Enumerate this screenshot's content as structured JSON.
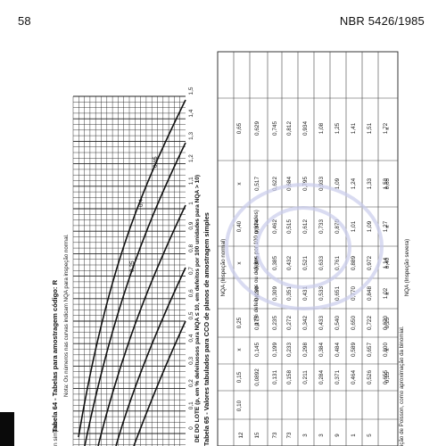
{
  "header": {
    "page_number": "58",
    "doc_id": "NBR 5426/1985"
  },
  "table64": {
    "title": "Tabela 64 - Tabelas para amostragem código: R",
    "note": "Nota: Os números nas curvas indicam NQA para inspeção normal.",
    "simples_label": "n simples",
    "curve_labels": [
      "0,65",
      "0,4",
      "0,25"
    ],
    "x_ticks": [
      "0",
      "0,1",
      "0,2",
      "0,3",
      "0,4",
      "0,5",
      "0,6",
      "0,7",
      "0,8",
      "0,9",
      "1",
      "1,1",
      "1,2",
      "1,3",
      "1,4",
      "1,5"
    ],
    "x_axis_label": "DE DO LOTE (p, em % defeituosos para NQA ≤ 10, em defeitos por 100 unidades para NQA > 10)"
  },
  "table65": {
    "title": "Tabela 65 - Valores tabulados para CCO de planos de amostragem simples",
    "nqa_normal_header": "NQA (Inspeção normal)",
    "p_header": "p (% defeituosos ou defeitos por 100 unidades)",
    "pa_col": [
      "12",
      "15",
      "73",
      "73",
      "3",
      "3",
      "9",
      "1",
      "5"
    ],
    "columns": [
      {
        "nqa": "0,10",
        "values": []
      },
      {
        "nqa": "0,15",
        "values": [
          "0,0892",
          "0,131",
          "0,158",
          "0,211",
          "0,284",
          "0,371",
          "0,464",
          "0,526",
          "0,655"
        ]
      },
      {
        "nqa": "x",
        "values": [
          "0,145",
          "0,199",
          "0,233",
          "0,298",
          "0,384",
          "0,484",
          "0,589",
          "0,657",
          "0,800"
        ]
      },
      {
        "nqa": "0,25",
        "values": [
          "0,175",
          "0,235",
          "0,272",
          "0,342",
          "0,433",
          "0,540",
          "0,650",
          "0,722",
          "0,870"
        ]
      },
      {
        "nqa": "",
        "values": [
          "0,239",
          "0,309",
          "0,351",
          "0,431",
          "0,533",
          "0,651",
          "0,770",
          "0,848",
          "1,02"
        ]
      },
      {
        "nqa": "x",
        "values": [
          "0,305",
          "0,385",
          "0,432",
          "0,521",
          "0,633",
          "0,761",
          "0,889",
          "0,972",
          "1,14"
        ]
      },
      {
        "nqa": "0,40",
        "values": [
          "0,374",
          "0,462",
          "0,515",
          "0,612",
          "0,733",
          "0,870",
          "1,01",
          "1,09",
          "1,27"
        ]
      },
      {
        "nqa": "x",
        "values": [
          "0,517",
          "0,622",
          "0,684",
          "0,795",
          "0,933",
          "1,09",
          "1,24",
          "1,33",
          "1,53"
        ]
      },
      {
        "nqa": "0,65",
        "values": [
          "0,629",
          "0,745",
          "0,812",
          "0,934",
          "1,08",
          "1,25",
          "1,41",
          "1,51",
          "1,72"
        ]
      }
    ],
    "bottom_row": [
      "0,15",
      "x",
      "0,25",
      "x",
      "0,40",
      "x",
      "0,65",
      "x"
    ],
    "severa_label": "NQA (Inspeção severa)",
    "footnote": "ição de Poisson, como aproximação da binomial."
  }
}
